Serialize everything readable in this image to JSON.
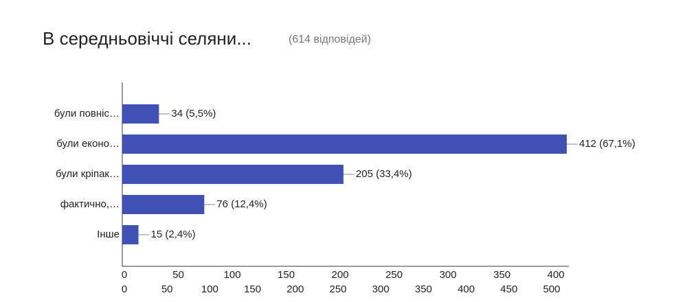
{
  "chart_data": {
    "type": "bar",
    "orientation": "horizontal",
    "title": "В середньовіччі селяни...",
    "subtitle": "(614 відповідей)",
    "categories": [
      "були повніс…",
      "були еконо…",
      "були кріпак…",
      "фактично,…",
      "Інше"
    ],
    "values": [
      34,
      412,
      205,
      76,
      15
    ],
    "value_labels": [
      "34 (5,5%)",
      "412 (67,1%)",
      "205 (33,4%)",
      "76 (12,4%)",
      "15 (2,4%)"
    ],
    "color": "#3f51b5",
    "xlim": [
      0,
      412
    ],
    "xticks": [
      0,
      50,
      100,
      150,
      200,
      250,
      300,
      350,
      400
    ],
    "x2lim": [
      0,
      500
    ],
    "x2ticks": [
      0,
      50,
      100,
      150,
      200,
      250,
      300,
      350,
      400,
      450,
      500
    ]
  }
}
